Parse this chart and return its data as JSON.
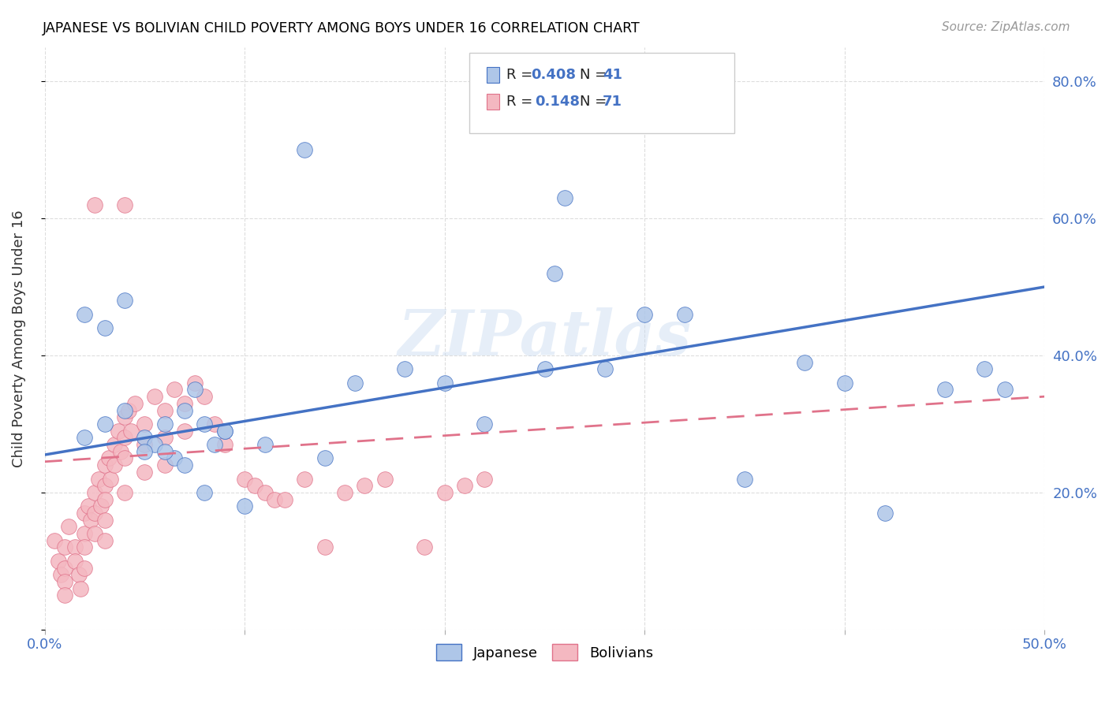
{
  "title": "JAPANESE VS BOLIVIAN CHILD POVERTY AMONG BOYS UNDER 16 CORRELATION CHART",
  "source": "Source: ZipAtlas.com",
  "ylabel_label": "Child Poverty Among Boys Under 16",
  "x_min": 0.0,
  "x_max": 0.5,
  "y_min": 0.0,
  "y_max": 0.85,
  "xticks": [
    0.0,
    0.1,
    0.2,
    0.3,
    0.4,
    0.5
  ],
  "xtick_labels": [
    "0.0%",
    "",
    "",
    "",
    "",
    "50.0%"
  ],
  "yticks": [
    0.0,
    0.2,
    0.4,
    0.6,
    0.8
  ],
  "ytick_labels": [
    "",
    "20.0%",
    "40.0%",
    "60.0%",
    "80.0%"
  ],
  "japanese_color": "#aec6e8",
  "japanese_color_dark": "#4472c4",
  "bolivian_color": "#f4b8c1",
  "bolivian_color_dark": "#e0728a",
  "trend_japanese_color": "#4472c4",
  "trend_bolivian_color": "#e0728a",
  "watermark": "ZIPatlas",
  "jap_trend_x": [
    0.0,
    0.5
  ],
  "jap_trend_y": [
    0.255,
    0.5
  ],
  "bol_trend_x": [
    0.0,
    0.5
  ],
  "bol_trend_y": [
    0.245,
    0.34
  ],
  "japanese_x": [
    0.02,
    0.03,
    0.04,
    0.05,
    0.055,
    0.06,
    0.065,
    0.07,
    0.075,
    0.08,
    0.085,
    0.09,
    0.1,
    0.11,
    0.13,
    0.14,
    0.155,
    0.18,
    0.2,
    0.22,
    0.25,
    0.255,
    0.26,
    0.28,
    0.3,
    0.32,
    0.35,
    0.38,
    0.4,
    0.42,
    0.45,
    0.47,
    0.48,
    0.02,
    0.03,
    0.04,
    0.05,
    0.06,
    0.07,
    0.08,
    0.09
  ],
  "japanese_y": [
    0.28,
    0.3,
    0.32,
    0.28,
    0.27,
    0.3,
    0.25,
    0.32,
    0.35,
    0.3,
    0.27,
    0.29,
    0.18,
    0.27,
    0.7,
    0.25,
    0.36,
    0.38,
    0.36,
    0.3,
    0.38,
    0.52,
    0.63,
    0.38,
    0.46,
    0.46,
    0.22,
    0.39,
    0.36,
    0.17,
    0.35,
    0.38,
    0.35,
    0.46,
    0.44,
    0.48,
    0.26,
    0.26,
    0.24,
    0.2,
    0.29
  ],
  "bolivian_x": [
    0.005,
    0.007,
    0.008,
    0.01,
    0.01,
    0.01,
    0.01,
    0.012,
    0.015,
    0.015,
    0.017,
    0.018,
    0.02,
    0.02,
    0.02,
    0.02,
    0.022,
    0.023,
    0.025,
    0.025,
    0.025,
    0.027,
    0.028,
    0.03,
    0.03,
    0.03,
    0.03,
    0.03,
    0.032,
    0.033,
    0.035,
    0.035,
    0.037,
    0.038,
    0.04,
    0.04,
    0.04,
    0.04,
    0.042,
    0.043,
    0.045,
    0.05,
    0.05,
    0.05,
    0.055,
    0.06,
    0.06,
    0.06,
    0.065,
    0.07,
    0.07,
    0.075,
    0.08,
    0.085,
    0.09,
    0.1,
    0.105,
    0.11,
    0.115,
    0.12,
    0.13,
    0.14,
    0.15,
    0.16,
    0.17,
    0.19,
    0.2,
    0.21,
    0.22,
    0.04,
    0.025
  ],
  "bolivian_y": [
    0.13,
    0.1,
    0.08,
    0.12,
    0.09,
    0.07,
    0.05,
    0.15,
    0.12,
    0.1,
    0.08,
    0.06,
    0.17,
    0.14,
    0.12,
    0.09,
    0.18,
    0.16,
    0.2,
    0.17,
    0.14,
    0.22,
    0.18,
    0.24,
    0.21,
    0.19,
    0.16,
    0.13,
    0.25,
    0.22,
    0.27,
    0.24,
    0.29,
    0.26,
    0.31,
    0.28,
    0.25,
    0.2,
    0.32,
    0.29,
    0.33,
    0.3,
    0.27,
    0.23,
    0.34,
    0.32,
    0.28,
    0.24,
    0.35,
    0.33,
    0.29,
    0.36,
    0.34,
    0.3,
    0.27,
    0.22,
    0.21,
    0.2,
    0.19,
    0.19,
    0.22,
    0.12,
    0.2,
    0.21,
    0.22,
    0.12,
    0.2,
    0.21,
    0.22,
    0.62,
    0.62
  ]
}
